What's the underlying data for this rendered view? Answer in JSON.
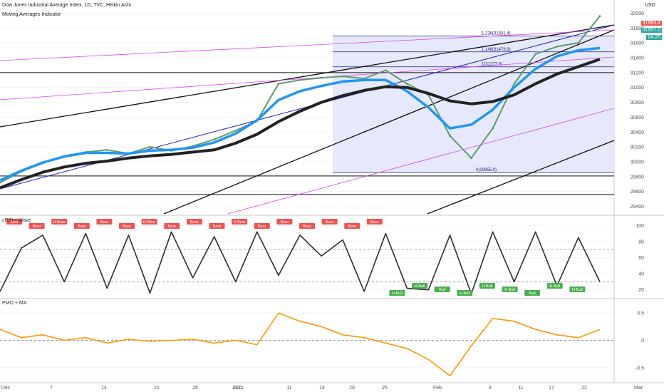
{
  "header": {
    "title": "Dow Jones Industrial Average Index, 1D, TVC, Heikin Ashi",
    "indicator": "Moving Averages Indicator",
    "currency": "USD"
  },
  "price_tags": [
    {
      "value": "31964.4",
      "color": "#ef5350"
    },
    {
      "value": "31957.0",
      "color": "#26a69a"
    },
    {
      "value": "04:25",
      "color": "#26a69a"
    }
  ],
  "panes": {
    "crsi": {
      "title": "cRSI + Wave"
    },
    "pmo": {
      "title": "PMO + MA"
    }
  },
  "chart_data": [
    {
      "type": "line",
      "title": "Dow Jones Industrial Average Index, 1D, TVC, Heikin Ashi",
      "x_ticks": [
        "Dec",
        "7",
        "14",
        "21",
        "28",
        "2021",
        "11",
        "14",
        "20",
        "25",
        "Feb",
        "8",
        "11",
        "17",
        "22",
        "Mar"
      ],
      "y_ticks": [
        29400,
        29600,
        29800,
        30000,
        30200,
        30400,
        30600,
        30800,
        31000,
        31200,
        31400,
        31600,
        31800,
        32000
      ],
      "ylim": [
        29300,
        32100
      ],
      "x": [
        0,
        3,
        6,
        9,
        12,
        15,
        18,
        21,
        24,
        27,
        30,
        33,
        36,
        39,
        42,
        45,
        48,
        51,
        54,
        57,
        60,
        63,
        66,
        69,
        72,
        75,
        78,
        81,
        84
      ],
      "series": [
        {
          "name": "",
          "color": "#5d9b6a",
          "values": [
            29720,
            29870,
            29980,
            30080,
            30130,
            30160,
            30110,
            30200,
            30150,
            30210,
            30300,
            30420,
            30550,
            31050,
            31100,
            31130,
            31150,
            31120,
            31230,
            31050,
            30900,
            30350,
            30050,
            30450,
            31050,
            31450,
            31550,
            31600,
            31960
          ]
        },
        {
          "name": "",
          "color": "#2196f3",
          "values": [
            29750,
            29880,
            29990,
            30070,
            30120,
            30120,
            30110,
            30150,
            30160,
            30190,
            30260,
            30380,
            30560,
            30830,
            30950,
            31020,
            31080,
            31100,
            31100,
            30950,
            30730,
            30450,
            30500,
            30700,
            31000,
            31250,
            31420,
            31500,
            31530
          ]
        },
        {
          "name": "",
          "color": "#222222",
          "values": [
            29650,
            29760,
            29860,
            29930,
            29980,
            30010,
            30050,
            30080,
            30100,
            30130,
            30160,
            30250,
            30370,
            30540,
            30680,
            30800,
            30890,
            30960,
            31010,
            31000,
            30920,
            30820,
            30780,
            30810,
            30900,
            31050,
            31180,
            31280,
            31380
          ]
        }
      ],
      "fib_levels": [
        {
          "label": "1.236(31691.4)",
          "value": 31691.4
        },
        {
          "label": "1.146(31478.9)",
          "value": 31478.9
        },
        {
          "label": "1(31277.8)",
          "value": 31277.8
        },
        {
          "label": "0(29855.0)",
          "value": 29855.0
        }
      ]
    },
    {
      "type": "line",
      "title": "cRSI + Wave",
      "y_ticks": [
        20,
        40,
        60,
        80,
        100
      ],
      "ylim": [
        10,
        110
      ],
      "x": [
        0,
        3,
        6,
        9,
        12,
        15,
        18,
        21,
        24,
        27,
        30,
        33,
        36,
        39,
        42,
        45,
        48,
        51,
        54,
        57,
        60,
        63,
        66,
        69,
        72,
        75,
        78,
        81,
        84
      ],
      "series": [
        {
          "name": "",
          "color": "#2e2e2e",
          "values": [
            18,
            72,
            88,
            30,
            90,
            22,
            88,
            16,
            92,
            35,
            86,
            30,
            92,
            38,
            88,
            62,
            82,
            18,
            90,
            22,
            20,
            88,
            15,
            92,
            30,
            92,
            25,
            85,
            30
          ]
        }
      ],
      "labels": [
        "Bear",
        "Bear",
        "H Bear",
        "Bear",
        "Bear",
        "Bear",
        "H Bear",
        "Bear",
        "Bear",
        "Bear",
        "H Bear",
        "Bear",
        "Bear",
        "Bear",
        "Bear",
        "Bear",
        "Bear",
        "H Bull",
        "H Bull",
        "Bull",
        "H Bull",
        "H Bull",
        "H Bull",
        "Bull",
        "H Bull",
        "H Bull"
      ]
    },
    {
      "type": "line",
      "title": "PMO + MA",
      "y_ticks": [
        -0.5,
        0.0,
        0.5
      ],
      "ylim": [
        -0.75,
        0.75
      ],
      "x": [
        0,
        3,
        6,
        9,
        12,
        15,
        18,
        21,
        24,
        27,
        30,
        33,
        36,
        39,
        42,
        45,
        48,
        51,
        54,
        57,
        60,
        63,
        66,
        69,
        72,
        75,
        78,
        81,
        84
      ],
      "series": [
        {
          "name": "",
          "color": "#ff9800",
          "values": [
            0.2,
            0.05,
            0.1,
            0.0,
            0.05,
            -0.05,
            0.02,
            -0.02,
            0.0,
            0.02,
            -0.05,
            0.0,
            -0.08,
            0.5,
            0.35,
            0.25,
            0.1,
            0.05,
            -0.05,
            -0.15,
            -0.35,
            -0.65,
            -0.1,
            0.4,
            0.35,
            0.2,
            0.1,
            0.05,
            0.2
          ]
        }
      ]
    }
  ]
}
